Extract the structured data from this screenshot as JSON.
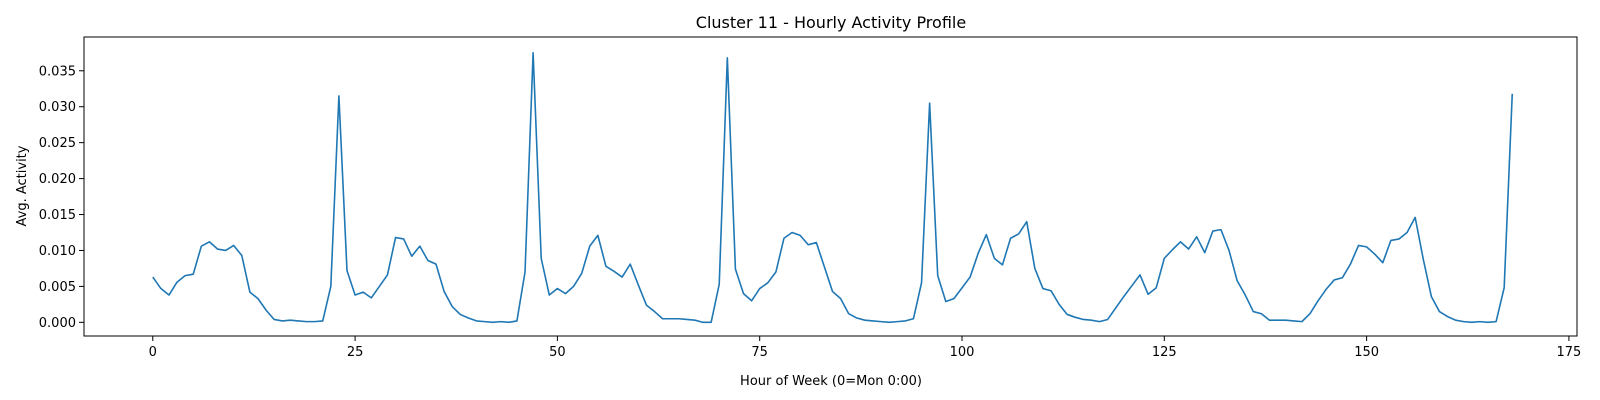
{
  "chart_data": {
    "type": "line",
    "title": "Cluster 11 - Hourly Activity Profile",
    "xlabel": "Hour of Week (0=Mon 0:00)",
    "ylabel": "Avg. Activity",
    "xlim": [
      -8.5,
      176
    ],
    "ylim": [
      -0.0019,
      0.0397
    ],
    "xticks": [
      0,
      25,
      50,
      75,
      100,
      125,
      150,
      175
    ],
    "yticks": [
      0.0,
      0.005,
      0.01,
      0.015,
      0.02,
      0.025,
      0.03,
      0.035
    ],
    "ytick_labels": [
      "0.000",
      "0.005",
      "0.010",
      "0.015",
      "0.020",
      "0.025",
      "0.030",
      "0.035"
    ],
    "grid": false,
    "line_color": "#1f77b4",
    "series": [
      {
        "values": [
          0.0063,
          0.0047,
          0.0038,
          0.0056,
          0.0065,
          0.0067,
          0.0106,
          0.0112,
          0.0102,
          0.01,
          0.0107,
          0.0093,
          0.0042,
          0.0033,
          0.0017,
          0.0004,
          0.0002,
          0.0003,
          0.0002,
          0.0001,
          0.0001,
          0.0002,
          0.005,
          0.0315,
          0.0072,
          0.0038,
          0.0042,
          0.0034,
          0.005,
          0.0066,
          0.0118,
          0.0116,
          0.0092,
          0.0106,
          0.0086,
          0.0081,
          0.0043,
          0.0022,
          0.0011,
          0.0006,
          0.0002,
          0.0001,
          0.0,
          0.0001,
          0.0,
          0.0002,
          0.007,
          0.0375,
          0.0089,
          0.0038,
          0.0047,
          0.004,
          0.005,
          0.0068,
          0.0106,
          0.0121,
          0.0078,
          0.0071,
          0.0063,
          0.0081,
          0.0052,
          0.0024,
          0.0015,
          0.0005,
          0.0005,
          0.0005,
          0.0004,
          0.0003,
          0.0,
          0.0,
          0.0053,
          0.0368,
          0.0074,
          0.004,
          0.003,
          0.0047,
          0.0055,
          0.007,
          0.0117,
          0.0125,
          0.0121,
          0.0108,
          0.0111,
          0.0077,
          0.0043,
          0.0033,
          0.0012,
          0.0006,
          0.0003,
          0.0002,
          0.0001,
          0.0,
          0.0001,
          0.0002,
          0.0005,
          0.0055,
          0.0305,
          0.0065,
          0.0029,
          0.0033,
          0.0048,
          0.0063,
          0.0096,
          0.0122,
          0.0089,
          0.008,
          0.0117,
          0.0123,
          0.014,
          0.0075,
          0.0047,
          0.0044,
          0.0025,
          0.0011,
          0.0007,
          0.0004,
          0.0003,
          0.0001,
          0.0004,
          0.002,
          0.0036,
          0.0051,
          0.0066,
          0.0039,
          0.0048,
          0.0089,
          0.0101,
          0.0112,
          0.0102,
          0.0119,
          0.0097,
          0.0127,
          0.0129,
          0.01,
          0.0058,
          0.0038,
          0.0015,
          0.0012,
          0.0003,
          0.0003,
          0.0003,
          0.0002,
          0.0001,
          0.0012,
          0.003,
          0.0046,
          0.0059,
          0.0062,
          0.0081,
          0.0107,
          0.0105,
          0.0095,
          0.0083,
          0.0114,
          0.0116,
          0.0125,
          0.0146,
          0.0088,
          0.0036,
          0.0015,
          0.0008,
          0.0003,
          0.0001,
          0.0,
          0.0001,
          0.0,
          0.0001,
          0.0048,
          0.0318
        ]
      }
    ]
  }
}
